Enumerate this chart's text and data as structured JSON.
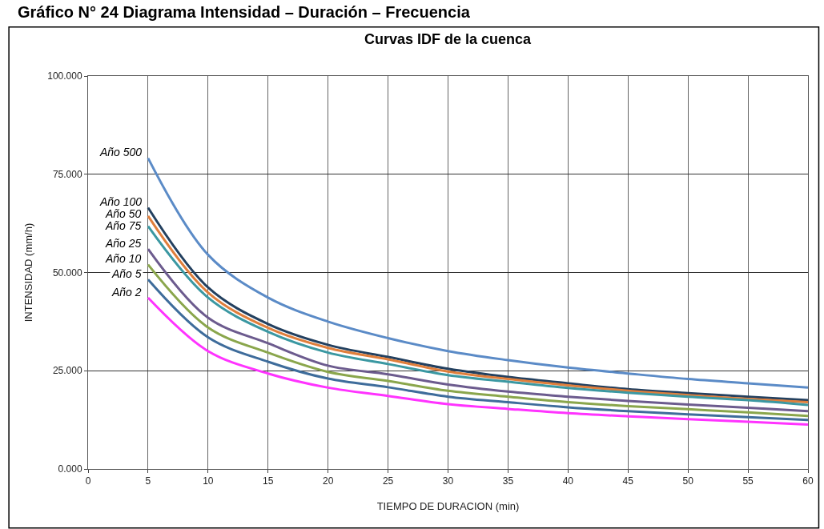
{
  "chart_data": {
    "type": "line",
    "title": "Gráfico N° 24 Diagrama Intensidad – Duración – Frecuencia",
    "subtitle": "Curvas IDF de la cuenca",
    "xlabel": "TIEMPO DE DURACION (min)",
    "ylabel": "INTENSIDAD (mm/h)",
    "x": [
      5,
      10,
      15,
      20,
      25,
      30,
      35,
      40,
      45,
      50,
      55,
      60
    ],
    "series": [
      {
        "name": "Año 500",
        "color": "#5b8bc7",
        "values": [
          79.1,
          54.5,
          43.6,
          37.5,
          33.3,
          30.0,
          27.7,
          25.8,
          24.3,
          22.9,
          21.8,
          20.7
        ]
      },
      {
        "name": "Año 100",
        "color": "#23405f",
        "values": [
          66.5,
          46.2,
          36.9,
          31.6,
          28.5,
          25.5,
          23.4,
          21.8,
          20.3,
          19.3,
          18.4,
          17.5
        ]
      },
      {
        "name": "Año 50",
        "color": "#e07f3c",
        "values": [
          64.4,
          44.9,
          35.9,
          30.8,
          27.9,
          24.8,
          22.9,
          21.3,
          19.9,
          18.8,
          17.8,
          17.0
        ]
      },
      {
        "name": "Año 75",
        "color": "#3b98a2",
        "values": [
          61.8,
          43.6,
          34.9,
          29.6,
          26.7,
          23.9,
          22.2,
          20.6,
          19.4,
          18.4,
          17.5,
          16.3
        ]
      },
      {
        "name": "Año 25",
        "color": "#6c5b8e",
        "values": [
          56.0,
          38.5,
          32.0,
          26.3,
          24.1,
          21.5,
          19.7,
          18.4,
          17.3,
          16.4,
          15.6,
          14.7
        ]
      },
      {
        "name": "Año 10",
        "color": "#8aa64c",
        "values": [
          52.0,
          36.0,
          29.6,
          24.7,
          22.4,
          19.9,
          18.4,
          17.0,
          16.0,
          15.2,
          14.4,
          13.5
        ]
      },
      {
        "name": "Año 5",
        "color": "#3e6c9b",
        "values": [
          48.2,
          33.5,
          27.3,
          23.0,
          20.8,
          18.4,
          17.0,
          15.7,
          14.7,
          13.9,
          13.2,
          12.5
        ]
      },
      {
        "name": "Año 2",
        "color": "#ff33ff",
        "values": [
          43.6,
          30.0,
          24.3,
          20.7,
          18.6,
          16.5,
          15.3,
          14.2,
          13.4,
          12.7,
          12.0,
          11.3
        ]
      }
    ],
    "xlim": [
      0,
      60
    ],
    "xticks": [
      0,
      5,
      10,
      15,
      20,
      25,
      30,
      35,
      40,
      45,
      50,
      55,
      60
    ],
    "ylim": [
      0,
      100
    ],
    "yticks": [
      {
        "value": 0,
        "label": "0.000"
      },
      {
        "value": 25,
        "label": "25.000"
      },
      {
        "value": 50,
        "label": "50.000"
      },
      {
        "value": 75,
        "label": "75.000"
      },
      {
        "value": 100,
        "label": "100.000"
      }
    ],
    "grid": true,
    "legend": false,
    "marker": "none",
    "line_style": "solid"
  }
}
